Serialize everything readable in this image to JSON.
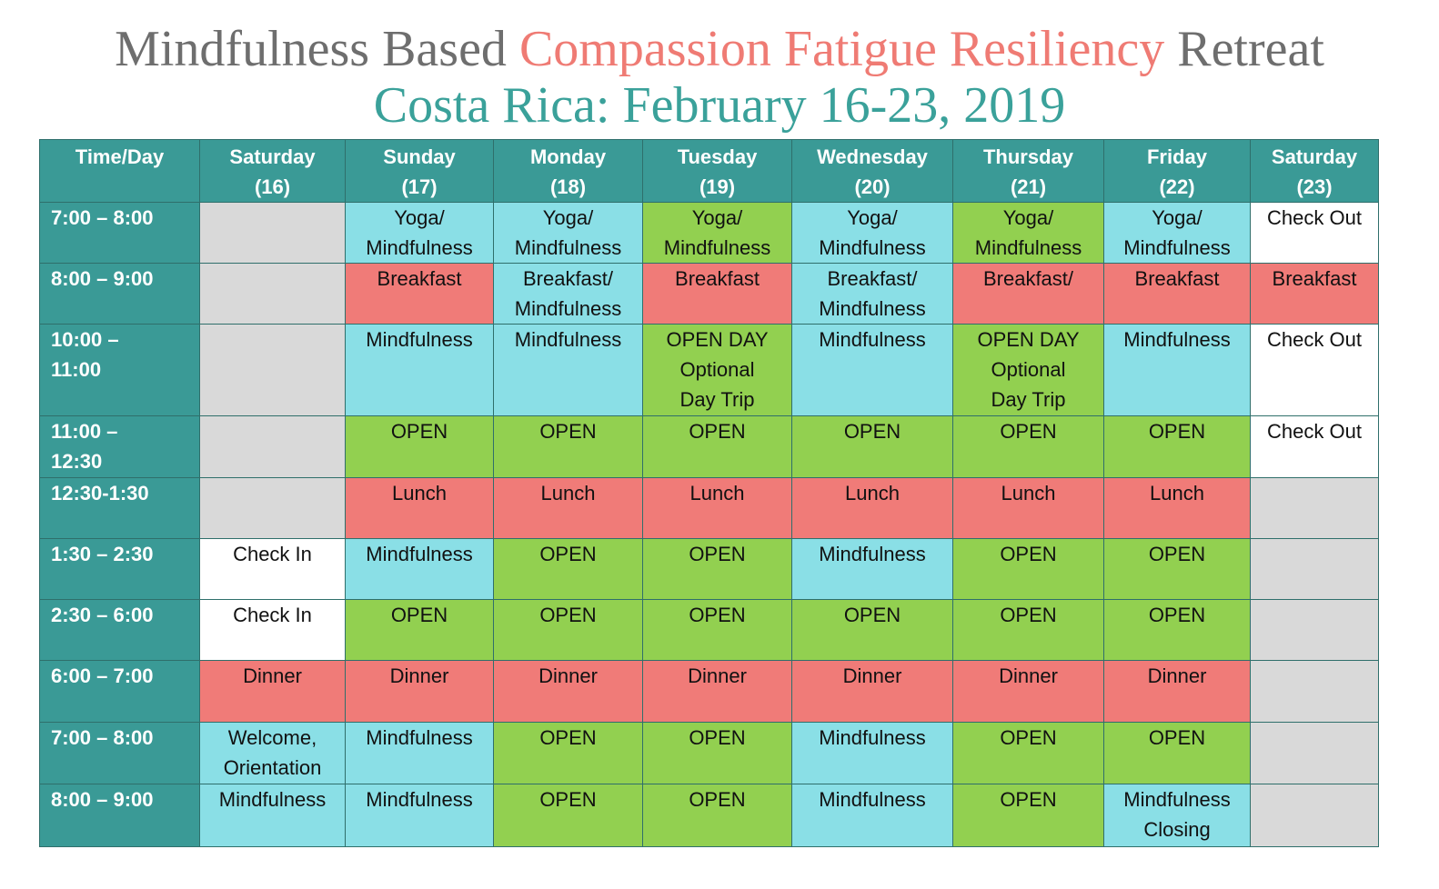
{
  "title": {
    "part1": "Mindfulness Based ",
    "accent": "Compassion Fatigue Resiliency",
    "part3": " Retreat",
    "subtitle": "Costa Rica: February 16-23, 2019"
  },
  "colors": {
    "header": "#3a9a96",
    "blue": "#8adfe6",
    "green": "#92d050",
    "red": "#f07b78",
    "gray": "#d9d9d9",
    "white": "#ffffff",
    "title_gray": "#6e6e6e",
    "title_accent": "#ef7b74",
    "subtitle": "#3aa19a"
  },
  "headers": [
    {
      "l1": "Time/Day",
      "l2": ""
    },
    {
      "l1": "Saturday",
      "l2": "(16)"
    },
    {
      "l1": "Sunday",
      "l2": "(17)"
    },
    {
      "l1": "Monday",
      "l2": "(18)"
    },
    {
      "l1": "Tuesday",
      "l2": "(19)"
    },
    {
      "l1": "Wednesday",
      "l2": "(20)"
    },
    {
      "l1": "Thursday",
      "l2": "(21)"
    },
    {
      "l1": "Friday",
      "l2": "(22)"
    },
    {
      "l1": "Saturday",
      "l2": "(23)"
    }
  ],
  "rows": [
    {
      "time": [
        "7:00 – 8:00"
      ],
      "cells": [
        {
          "c": "gray",
          "t": []
        },
        {
          "c": "blue",
          "t": [
            "Yoga/",
            "Mindfulness"
          ]
        },
        {
          "c": "blue",
          "t": [
            "Yoga/",
            "Mindfulness"
          ]
        },
        {
          "c": "green",
          "t": [
            "Yoga/",
            "Mindfulness"
          ]
        },
        {
          "c": "blue",
          "t": [
            "Yoga/",
            "Mindfulness"
          ]
        },
        {
          "c": "green",
          "t": [
            "Yoga/",
            "Mindfulness"
          ]
        },
        {
          "c": "blue",
          "t": [
            "Yoga/",
            "Mindfulness"
          ]
        },
        {
          "c": "white",
          "t": [
            "Check Out"
          ]
        }
      ]
    },
    {
      "time": [
        "8:00 – 9:00"
      ],
      "cells": [
        {
          "c": "gray",
          "t": []
        },
        {
          "c": "red",
          "t": [
            "Breakfast"
          ]
        },
        {
          "c": "blue",
          "t": [
            "Breakfast/",
            "Mindfulness"
          ]
        },
        {
          "c": "red",
          "t": [
            "Breakfast"
          ]
        },
        {
          "c": "blue",
          "t": [
            "Breakfast/",
            "Mindfulness"
          ]
        },
        {
          "c": "red",
          "t": [
            "Breakfast/"
          ]
        },
        {
          "c": "red",
          "t": [
            "Breakfast"
          ]
        },
        {
          "c": "red",
          "t": [
            "Breakfast"
          ]
        }
      ]
    },
    {
      "time": [
        "10:00 –",
        "11:00"
      ],
      "cells": [
        {
          "c": "gray",
          "t": []
        },
        {
          "c": "blue",
          "t": [
            "Mindfulness"
          ]
        },
        {
          "c": "blue",
          "t": [
            "Mindfulness"
          ]
        },
        {
          "c": "green",
          "t": [
            "OPEN DAY",
            "Optional",
            "Day Trip"
          ]
        },
        {
          "c": "blue",
          "t": [
            "Mindfulness"
          ]
        },
        {
          "c": "green",
          "t": [
            "OPEN DAY",
            "Optional",
            "Day Trip"
          ]
        },
        {
          "c": "blue",
          "t": [
            "Mindfulness"
          ]
        },
        {
          "c": "white",
          "t": [
            "Check Out"
          ]
        }
      ]
    },
    {
      "time": [
        "11:00 –",
        "12:30"
      ],
      "cells": [
        {
          "c": "gray",
          "t": []
        },
        {
          "c": "green",
          "t": [
            "OPEN"
          ]
        },
        {
          "c": "green",
          "t": [
            "OPEN"
          ]
        },
        {
          "c": "green",
          "t": [
            "OPEN"
          ]
        },
        {
          "c": "green",
          "t": [
            "OPEN"
          ]
        },
        {
          "c": "green",
          "t": [
            "OPEN"
          ]
        },
        {
          "c": "green",
          "t": [
            "OPEN"
          ]
        },
        {
          "c": "white",
          "t": [
            "Check Out"
          ]
        }
      ]
    },
    {
      "time": [
        "12:30-1:30"
      ],
      "cells": [
        {
          "c": "gray",
          "t": []
        },
        {
          "c": "red",
          "t": [
            "Lunch"
          ]
        },
        {
          "c": "red",
          "t": [
            "Lunch"
          ]
        },
        {
          "c": "red",
          "t": [
            "Lunch"
          ]
        },
        {
          "c": "red",
          "t": [
            "Lunch"
          ]
        },
        {
          "c": "red",
          "t": [
            "Lunch"
          ]
        },
        {
          "c": "red",
          "t": [
            "Lunch"
          ]
        },
        {
          "c": "gray",
          "t": []
        }
      ]
    },
    {
      "time": [
        "1:30 – 2:30"
      ],
      "cells": [
        {
          "c": "white",
          "t": [
            "Check In"
          ]
        },
        {
          "c": "blue",
          "t": [
            "Mindfulness"
          ]
        },
        {
          "c": "green",
          "t": [
            "OPEN"
          ]
        },
        {
          "c": "green",
          "t": [
            "OPEN"
          ]
        },
        {
          "c": "blue",
          "t": [
            "Mindfulness"
          ]
        },
        {
          "c": "green",
          "t": [
            "OPEN"
          ]
        },
        {
          "c": "green",
          "t": [
            "OPEN"
          ]
        },
        {
          "c": "gray",
          "t": []
        }
      ]
    },
    {
      "time": [
        "2:30 – 6:00"
      ],
      "cells": [
        {
          "c": "white",
          "t": [
            "Check In"
          ]
        },
        {
          "c": "green",
          "t": [
            "OPEN"
          ]
        },
        {
          "c": "green",
          "t": [
            "OPEN"
          ]
        },
        {
          "c": "green",
          "t": [
            "OPEN"
          ]
        },
        {
          "c": "green",
          "t": [
            "OPEN"
          ]
        },
        {
          "c": "green",
          "t": [
            "OPEN"
          ]
        },
        {
          "c": "green",
          "t": [
            "OPEN"
          ]
        },
        {
          "c": "gray",
          "t": []
        }
      ]
    },
    {
      "time": [
        "6:00 – 7:00"
      ],
      "cells": [
        {
          "c": "red",
          "t": [
            "Dinner"
          ]
        },
        {
          "c": "red",
          "t": [
            "Dinner"
          ]
        },
        {
          "c": "red",
          "t": [
            "Dinner"
          ]
        },
        {
          "c": "red",
          "t": [
            "Dinner"
          ]
        },
        {
          "c": "red",
          "t": [
            "Dinner"
          ]
        },
        {
          "c": "red",
          "t": [
            "Dinner"
          ]
        },
        {
          "c": "red",
          "t": [
            "Dinner"
          ]
        },
        {
          "c": "gray",
          "t": []
        }
      ]
    },
    {
      "time": [
        "7:00 – 8:00"
      ],
      "cells": [
        {
          "c": "blue",
          "t": [
            "Welcome,",
            "Orientation"
          ]
        },
        {
          "c": "blue",
          "t": [
            "Mindfulness"
          ]
        },
        {
          "c": "green",
          "t": [
            "OPEN"
          ]
        },
        {
          "c": "green",
          "t": [
            "OPEN"
          ]
        },
        {
          "c": "blue",
          "t": [
            "Mindfulness"
          ]
        },
        {
          "c": "green",
          "t": [
            "OPEN"
          ]
        },
        {
          "c": "green",
          "t": [
            "OPEN"
          ]
        },
        {
          "c": "gray",
          "t": []
        }
      ]
    },
    {
      "time": [
        "8:00 – 9:00"
      ],
      "cells": [
        {
          "c": "blue",
          "t": [
            "Mindfulness"
          ]
        },
        {
          "c": "blue",
          "t": [
            "Mindfulness"
          ]
        },
        {
          "c": "green",
          "t": [
            "OPEN"
          ]
        },
        {
          "c": "green",
          "t": [
            "OPEN"
          ]
        },
        {
          "c": "blue",
          "t": [
            "Mindfulness"
          ]
        },
        {
          "c": "green",
          "t": [
            "OPEN"
          ]
        },
        {
          "c": "blue",
          "t": [
            "Mindfulness",
            "Closing"
          ]
        },
        {
          "c": "gray",
          "t": []
        }
      ]
    }
  ]
}
